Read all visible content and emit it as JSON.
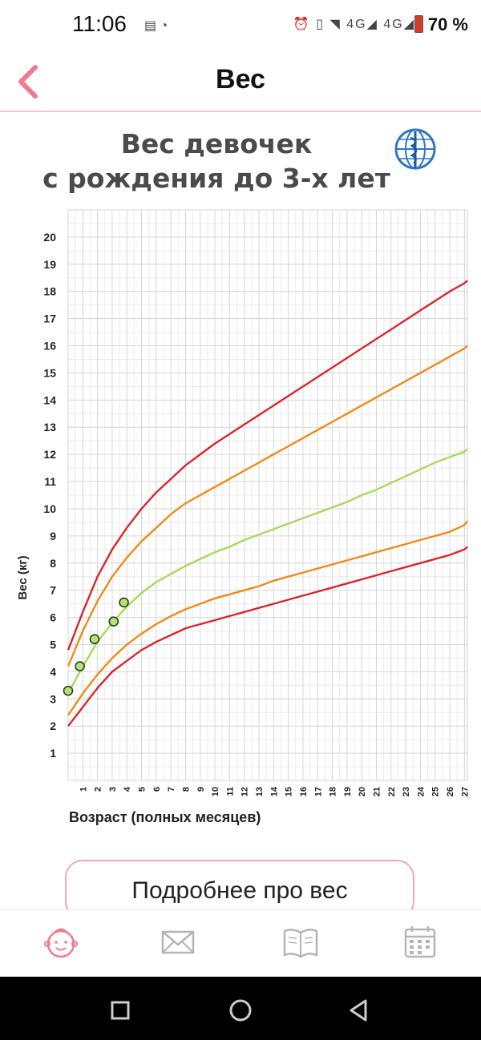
{
  "status": {
    "time": "11:06",
    "left_icons": "▤ ◔",
    "right_icons": "⏰ ▯ ◥ 4G◢ 4G◢",
    "battery": "70 %"
  },
  "header": {
    "title": "Вес",
    "back_icon": "chevron-left-icon",
    "accent": "#ef7c8e"
  },
  "chart_title_line1": "Вес девочек",
  "chart_title_line2": "с рождения до 3-х лет",
  "chart_data": {
    "type": "line",
    "ylabel": "Вес (кг)",
    "xlabel": "Возраст (полных месяцев)",
    "y_ticks": [
      "1",
      "2",
      "3",
      "4",
      "5",
      "6",
      "7",
      "8",
      "9",
      "10",
      "11",
      "12",
      "13",
      "14",
      "15",
      "16",
      "17",
      "18",
      "19",
      "20"
    ],
    "x_ticks": [
      "1",
      "2",
      "3",
      "4",
      "5",
      "6",
      "7",
      "8",
      "9",
      "10",
      "11",
      "12",
      "13",
      "14",
      "15",
      "16",
      "17",
      "18",
      "19",
      "20",
      "21",
      "22",
      "23",
      "24",
      "25",
      "26",
      "27"
    ],
    "xlim": [
      0,
      27.2
    ],
    "ylim": [
      0,
      21
    ],
    "grid": true,
    "x": [
      0,
      1,
      2,
      3,
      4,
      5,
      6,
      7,
      8,
      9,
      10,
      11,
      12,
      13,
      14,
      15,
      16,
      17,
      18,
      19,
      20,
      21,
      22,
      23,
      24,
      25,
      26,
      27,
      27.2
    ],
    "series": [
      {
        "color": "#d9262c",
        "values": [
          2.0,
          2.7,
          3.4,
          4.0,
          4.4,
          4.8,
          5.1,
          5.35,
          5.6,
          5.75,
          5.9,
          6.05,
          6.2,
          6.35,
          6.5,
          6.65,
          6.8,
          6.95,
          7.1,
          7.25,
          7.4,
          7.55,
          7.7,
          7.85,
          8.0,
          8.15,
          8.3,
          8.5,
          8.6
        ]
      },
      {
        "color": "#ef8a1c",
        "values": [
          2.4,
          3.2,
          3.9,
          4.5,
          5.0,
          5.4,
          5.75,
          6.05,
          6.3,
          6.5,
          6.7,
          6.85,
          7.0,
          7.15,
          7.35,
          7.5,
          7.65,
          7.8,
          7.95,
          8.1,
          8.25,
          8.4,
          8.55,
          8.7,
          8.85,
          9.0,
          9.15,
          9.4,
          9.55
        ]
      },
      {
        "color": "#a6da5c",
        "values": [
          3.2,
          4.2,
          5.1,
          5.8,
          6.4,
          6.9,
          7.3,
          7.6,
          7.9,
          8.15,
          8.4,
          8.6,
          8.85,
          9.05,
          9.25,
          9.45,
          9.65,
          9.85,
          10.05,
          10.25,
          10.5,
          10.7,
          10.95,
          11.2,
          11.45,
          11.7,
          11.9,
          12.1,
          12.2
        ]
      },
      {
        "color": "#ef8a1c",
        "values": [
          4.2,
          5.5,
          6.6,
          7.5,
          8.2,
          8.8,
          9.3,
          9.8,
          10.2,
          10.5,
          10.8,
          11.1,
          11.4,
          11.7,
          12.0,
          12.3,
          12.6,
          12.9,
          13.2,
          13.5,
          13.8,
          14.1,
          14.4,
          14.7,
          15.0,
          15.3,
          15.6,
          15.9,
          16.0
        ]
      },
      {
        "color": "#d9262c",
        "values": [
          4.8,
          6.2,
          7.5,
          8.5,
          9.3,
          10.0,
          10.6,
          11.1,
          11.6,
          12.0,
          12.4,
          12.75,
          13.1,
          13.45,
          13.8,
          14.15,
          14.5,
          14.85,
          15.2,
          15.55,
          15.9,
          16.25,
          16.6,
          16.95,
          17.3,
          17.65,
          18.0,
          18.3,
          18.4
        ]
      }
    ],
    "points": [
      {
        "x": 0,
        "y": 3.3
      },
      {
        "x": 0.8,
        "y": 4.2
      },
      {
        "x": 1.8,
        "y": 5.2
      },
      {
        "x": 3.1,
        "y": 5.85
      },
      {
        "x": 3.8,
        "y": 6.55
      }
    ],
    "point_fill": "#b6e07a"
  },
  "more_button_label": "Подробнее про вес",
  "bottom_nav": [
    "baby-face-icon",
    "envelope-icon",
    "book-icon",
    "calendar-icon"
  ],
  "system_nav": [
    "recents-square-icon",
    "home-circle-icon",
    "back-triangle-icon"
  ]
}
